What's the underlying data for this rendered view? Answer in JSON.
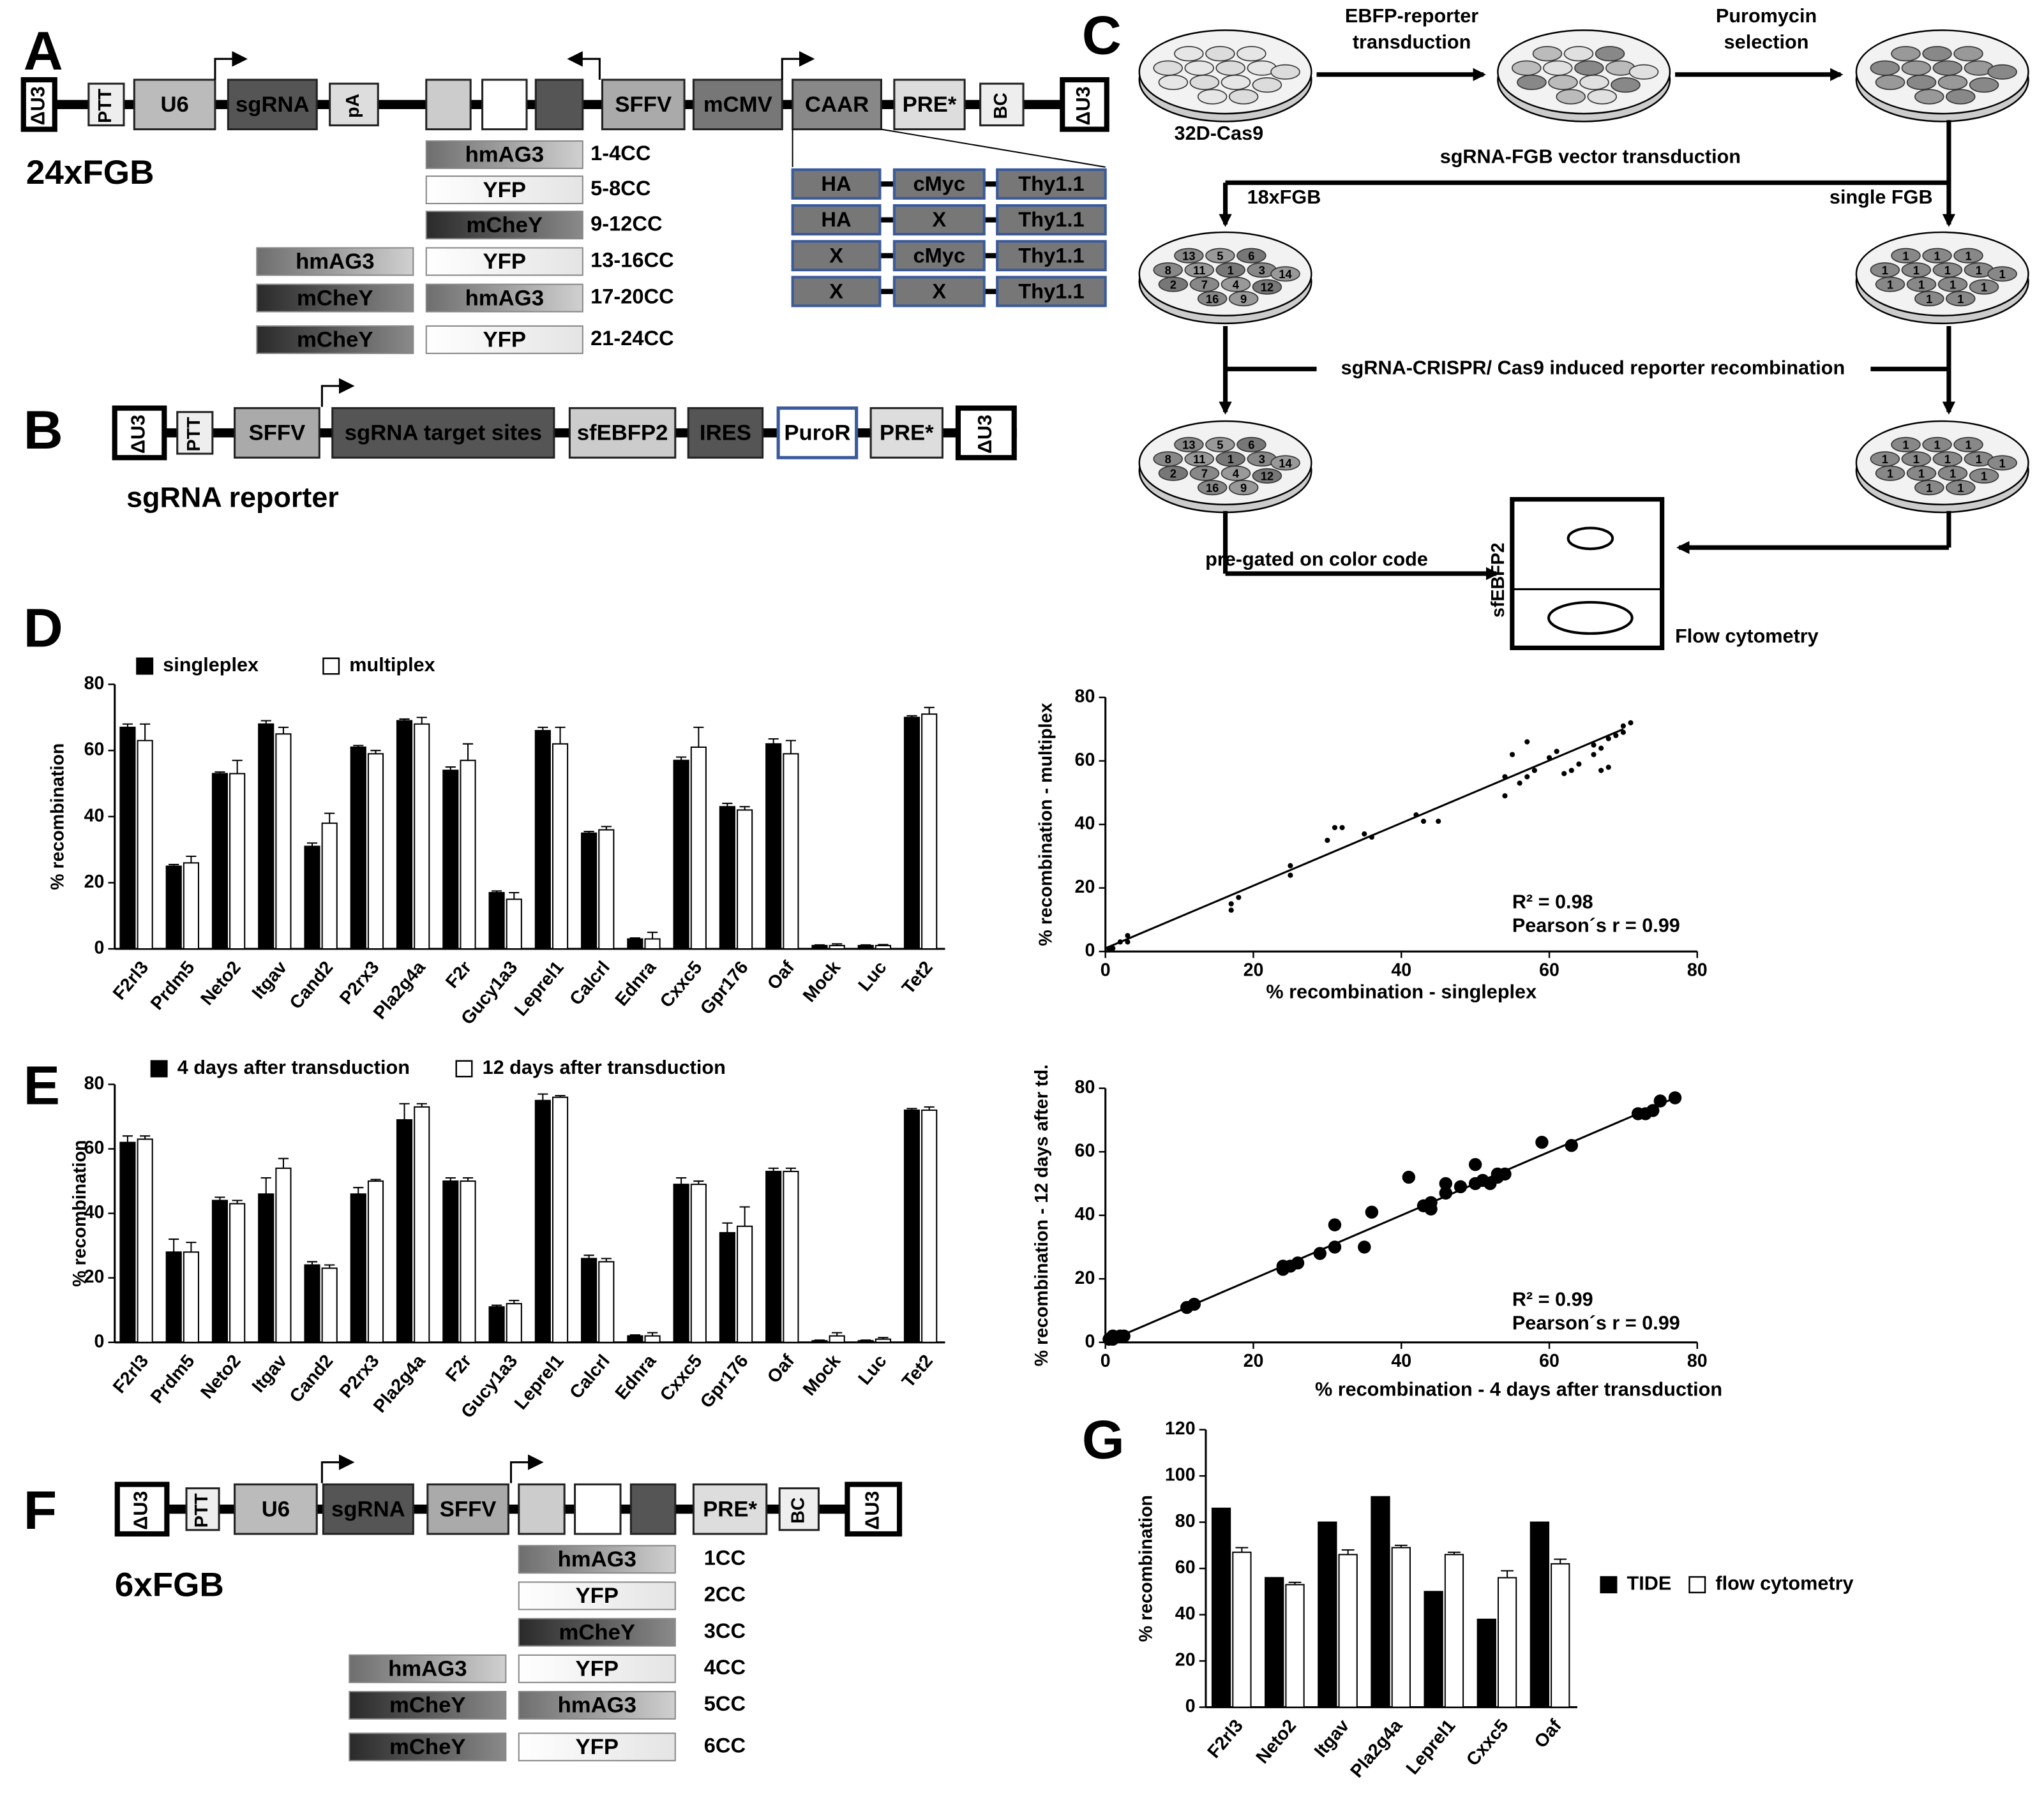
{
  "panel_labels": [
    "A",
    "B",
    "C",
    "D",
    "E",
    "F",
    "G"
  ],
  "diagram_a": {
    "vector": [
      "ΔU3",
      "PTT",
      "U6",
      "sgRNA",
      "pA",
      "SFFV",
      "mCMV",
      "CAAR",
      "PRE*",
      "BC",
      "ΔU3"
    ],
    "name": "24xFGB",
    "color_codes": [
      {
        "boxes": [
          "hmAG3"
        ],
        "label": "1-4CC"
      },
      {
        "boxes": [
          "YFP"
        ],
        "label": "5-8CC"
      },
      {
        "boxes": [
          "mCheY"
        ],
        "label": "9-12CC"
      },
      {
        "boxes": [
          "hmAG3",
          "YFP"
        ],
        "label": "13-16CC"
      },
      {
        "boxes": [
          "mCheY",
          "hmAG3"
        ],
        "label": "17-20CC"
      },
      {
        "boxes": [
          "mCheY",
          "YFP"
        ],
        "label": "21-24CC"
      }
    ],
    "caar_table": [
      [
        "HA",
        "cMyc",
        "Thy1.1"
      ],
      [
        "HA",
        "X",
        "Thy1.1"
      ],
      [
        "X",
        "cMyc",
        "Thy1.1"
      ],
      [
        "X",
        "X",
        "Thy1.1"
      ]
    ]
  },
  "diagram_b": {
    "vector": [
      "ΔU3",
      "PTT",
      "SFFV",
      "sgRNA target sites",
      "sfEBFP2",
      "IRES",
      "PuroR",
      "PRE*",
      "ΔU3"
    ],
    "name": "sgRNA reporter"
  },
  "diagram_c": {
    "reporter_transduction": [
      "EBFP-reporter",
      "transduction"
    ],
    "selection": [
      "Puromycin",
      "selection"
    ],
    "cell_line": "32D-Cas9",
    "vector_transduction": "sgRNA-FGB vector transduction",
    "multiplex": "18xFGB",
    "singleplex": "single FGB",
    "recombination": "sgRNA-CRISPR/ Cas9 induced reporter recombination",
    "gating": "pre-gated on color code",
    "flow_axis": "sfEBFP2",
    "flow": "Flow cytometry",
    "wells_multiplex": [
      "13",
      "5",
      "6",
      "8",
      "11",
      "1",
      "3",
      "14",
      "2",
      "7",
      "4",
      "12",
      "16",
      "9"
    ],
    "wells_single": [
      "1",
      "1",
      "1",
      "1",
      "1",
      "1",
      "1",
      "1",
      "1",
      "1",
      "1",
      "1",
      "1",
      "1"
    ]
  },
  "diagram_f": {
    "vector": [
      "ΔU3",
      "PTT",
      "U6",
      "sgRNA",
      "SFFV",
      "PRE*",
      "BC",
      "ΔU3"
    ],
    "name": "6xFGB",
    "color_codes": [
      {
        "boxes": [
          "hmAG3"
        ],
        "label": "1CC"
      },
      {
        "boxes": [
          "YFP"
        ],
        "label": "2CC"
      },
      {
        "boxes": [
          "mCheY"
        ],
        "label": "3CC"
      },
      {
        "boxes": [
          "hmAG3",
          "YFP"
        ],
        "label": "4CC"
      },
      {
        "boxes": [
          "mCheY",
          "hmAG3"
        ],
        "label": "5CC"
      },
      {
        "boxes": [
          "mCheY",
          "YFP"
        ],
        "label": "6CC"
      }
    ]
  },
  "chart_data": [
    {
      "type": "bar",
      "categories": [
        "F2rl3",
        "Prdm5",
        "Neto2",
        "Itgav",
        "Cand2",
        "P2rx3",
        "Pla2g4a",
        "F2r",
        "Gucy1a3",
        "Leprel1",
        "Calcrl",
        "Ednra",
        "Cxxc5",
        "Gpr176",
        "Oaf",
        "Mock",
        "Luc",
        "Tet2"
      ],
      "series": [
        {
          "name": "singleplex",
          "color": "#000000",
          "values": [
            67,
            25,
            53,
            68,
            31,
            61,
            69,
            54,
            17,
            66,
            35,
            3,
            57,
            43,
            62,
            1,
            1,
            70
          ],
          "errors": [
            1,
            0.5,
            0.5,
            1,
            1,
            0.5,
            0.5,
            1,
            0.5,
            1,
            0.5,
            0.3,
            1,
            1,
            1.5,
            0.2,
            0.2,
            0.5
          ]
        },
        {
          "name": "multiplex",
          "color": "#ffffff",
          "values": [
            63,
            26,
            53,
            65,
            38,
            59,
            68,
            57,
            15,
            62,
            36,
            3,
            61,
            42,
            59,
            1,
            1,
            71
          ],
          "errors": [
            5,
            2,
            4,
            2,
            3,
            1,
            2,
            5,
            2,
            5,
            1,
            2,
            6,
            1,
            4,
            0.5,
            0.3,
            2
          ]
        }
      ],
      "ylabel": "% recombination",
      "ylim": [
        0,
        80
      ],
      "yticks": [
        0,
        20,
        40,
        60,
        80
      ]
    },
    {
      "type": "scatter",
      "x": [
        0.5,
        1,
        2,
        3,
        3,
        17,
        17,
        18,
        25,
        25,
        30,
        31,
        32,
        35,
        36,
        42,
        43,
        45,
        54,
        54,
        55,
        56,
        57,
        57,
        58,
        61,
        60,
        62,
        63,
        64,
        67,
        68,
        67,
        68,
        69,
        70,
        70,
        71,
        66,
        66
      ],
      "y": [
        0.5,
        1,
        3,
        5,
        3,
        13,
        15,
        17,
        24,
        27,
        35,
        39,
        39,
        37,
        36,
        43,
        41,
        41,
        49,
        55,
        62,
        53,
        55,
        66,
        57,
        63,
        61,
        56,
        57,
        59,
        57,
        58,
        64,
        67,
        68,
        71,
        69,
        72,
        62,
        65
      ],
      "color": "#000000",
      "trendline": {
        "x": [
          0,
          70
        ],
        "y": [
          1,
          70
        ]
      },
      "xlabel": "% recombination - singleplex",
      "ylabel": "% recombination - multiplex",
      "annotations": [
        "R² = 0.98",
        "Pearson´s r = 0.99"
      ],
      "xlim": [
        0,
        80
      ],
      "ylim": [
        0,
        80
      ],
      "xticks": [
        0,
        20,
        40,
        60,
        80
      ],
      "yticks": [
        0,
        20,
        40,
        60,
        80
      ]
    },
    {
      "type": "bar",
      "categories": [
        "F2rl3",
        "Prdm5",
        "Neto2",
        "Itgav",
        "Cand2",
        "P2rx3",
        "Pla2g4a",
        "F2r",
        "Gucy1a3",
        "Leprel1",
        "Calcrl",
        "Ednra",
        "Cxxc5",
        "Gpr176",
        "Oaf",
        "Mock",
        "Luc",
        "Tet2"
      ],
      "series": [
        {
          "name": "4 days after transduction",
          "color": "#000000",
          "values": [
            62,
            28,
            44,
            46,
            24,
            46,
            69,
            50,
            11,
            75,
            26,
            2,
            49,
            34,
            53,
            0.5,
            0.5,
            72
          ],
          "errors": [
            2,
            4,
            1,
            5,
            1,
            2,
            5,
            1,
            0.5,
            2,
            1,
            0.3,
            2,
            3,
            1,
            0.2,
            0.2,
            0.5
          ]
        },
        {
          "name": "12 days after transduction",
          "color": "#ffffff",
          "values": [
            63,
            28,
            43,
            54,
            23,
            50,
            73,
            50,
            12,
            76,
            25,
            2,
            49,
            36,
            53,
            2,
            1,
            72
          ],
          "errors": [
            1,
            3,
            1,
            3,
            1,
            0.5,
            1,
            1,
            1,
            0.5,
            1,
            1,
            1,
            6,
            1,
            1,
            0.5,
            1
          ]
        }
      ],
      "ylabel": "% recombination",
      "ylim": [
        0,
        80
      ],
      "yticks": [
        0,
        20,
        40,
        60,
        80
      ]
    },
    {
      "type": "scatter",
      "x": [
        0.5,
        1,
        1,
        2,
        2.5,
        11,
        12,
        24,
        24,
        25,
        26,
        29,
        31,
        31,
        35,
        36,
        41,
        43,
        44,
        44,
        46,
        46,
        48,
        50,
        50,
        51,
        52,
        53,
        53,
        54,
        59,
        63,
        72,
        73,
        74,
        75,
        77
      ],
      "y": [
        1,
        2,
        1,
        2,
        2,
        11,
        12,
        23,
        24,
        24,
        25,
        28,
        30,
        37,
        30,
        41,
        52,
        43,
        42,
        44,
        47,
        50,
        49,
        50,
        56,
        51,
        50,
        52,
        53,
        53,
        63,
        62,
        72,
        72,
        73,
        76,
        77
      ],
      "color": "#000000",
      "trendline": {
        "x": [
          0,
          77
        ],
        "y": [
          0,
          77
        ]
      },
      "xlabel": "% recombination - 4 days after transduction",
      "ylabel": "% recombination - 12 days after td.",
      "annotations": [
        "R² = 0.99",
        "Pearson´s r = 0.99"
      ],
      "xlim": [
        0,
        80
      ],
      "ylim": [
        0,
        80
      ],
      "xticks": [
        0,
        20,
        40,
        60,
        80
      ],
      "yticks": [
        0,
        20,
        40,
        60,
        80
      ]
    },
    {
      "type": "bar",
      "categories": [
        "F2rl3",
        "Neto2",
        "Itgav",
        "Pla2g4a",
        "Leprel1",
        "Cxxc5",
        "Oaf"
      ],
      "series": [
        {
          "name": "TIDE",
          "color": "#000000",
          "values": [
            86,
            56,
            80,
            91,
            50,
            38,
            80
          ]
        },
        {
          "name": "flow cytometry",
          "color": "#ffffff",
          "values": [
            67,
            53,
            66,
            69,
            66,
            56,
            62
          ],
          "errors": [
            2,
            1,
            2,
            1,
            1,
            3,
            2
          ]
        }
      ],
      "ylabel": "% recombination",
      "ylim": [
        0,
        120
      ],
      "yticks": [
        0,
        20,
        40,
        60,
        80,
        100,
        120
      ]
    }
  ]
}
